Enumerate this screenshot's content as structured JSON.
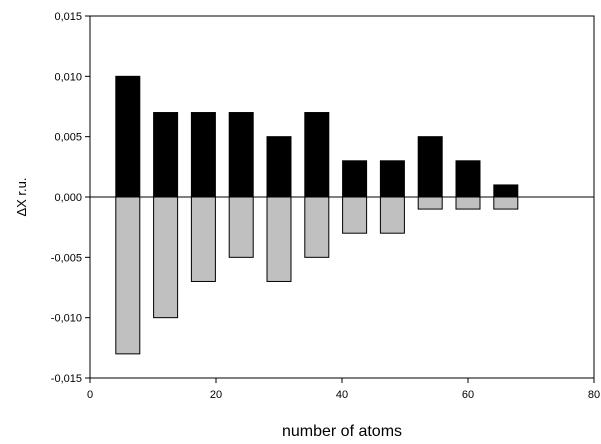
{
  "chart_data": {
    "type": "bar",
    "xlabel": "number of atoms",
    "ylabel": "ΔX r.u.",
    "xlim": [
      0,
      80
    ],
    "ylim": [
      -0.015,
      0.015
    ],
    "x_ticks": [
      "0",
      "20",
      "40",
      "60",
      "80"
    ],
    "y_ticks": [
      "0,015",
      "0,010",
      "0,005",
      "0,000",
      "-0,005",
      "-0,010",
      "-0,015"
    ],
    "grid": false,
    "legend": "none",
    "categories": [
      6,
      12,
      18,
      24,
      30,
      36,
      42,
      48,
      54,
      60,
      66
    ],
    "series": [
      {
        "color": "#000000",
        "values": [
          0.01,
          0.007,
          0.007,
          0.007,
          0.005,
          0.007,
          0.003,
          0.003,
          0.005,
          0.003,
          0.001
        ]
      },
      {
        "color": "#c0c0c0",
        "values": [
          -0.013,
          -0.01,
          -0.007,
          -0.005,
          -0.007,
          -0.005,
          -0.003,
          -0.003,
          -0.001,
          -0.001,
          -0.001
        ]
      }
    ]
  }
}
